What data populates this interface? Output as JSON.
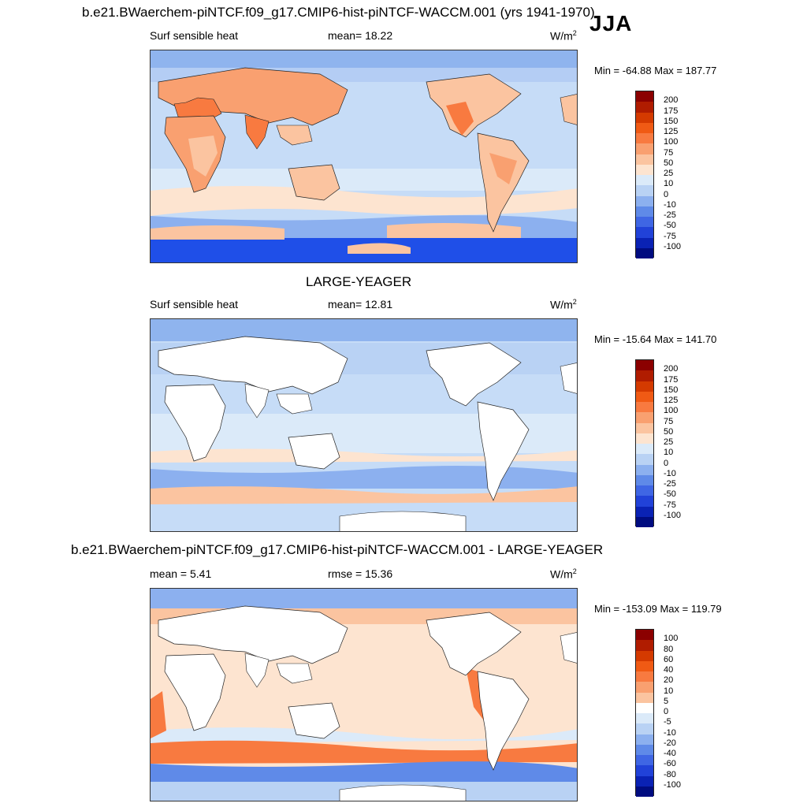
{
  "season": "JJA",
  "panels": [
    {
      "title": "b.e21.BWaerchem-piNTCF.f09_g17.CMIP6-hist-piNTCF-WACCM.001 (yrs 1941-1970)",
      "left_label": "Surf sensible heat",
      "center_label": "mean=  18.22",
      "units_base": "W/m",
      "units_exp": "2",
      "minmax": "Min = -64.88 Max = 187.77",
      "colorbar_labels": [
        "200",
        "175",
        "150",
        "125",
        "100",
        "75",
        "50",
        "25",
        "10",
        "0",
        "-10",
        "-25",
        "-50",
        "-75",
        "-100"
      ],
      "colorbar_colors": [
        "#8b0000",
        "#b01c00",
        "#d43a00",
        "#f05a14",
        "#f87a40",
        "#f9a070",
        "#fbc4a0",
        "#fde4d0",
        "#dbeaf9",
        "#b9d2f4",
        "#8cb0ef",
        "#5f8ae8",
        "#3f66e4",
        "#2142d8",
        "#0a22b4",
        "#000c80"
      ]
    },
    {
      "title": "LARGE-YEAGER",
      "left_label": "Surf sensible heat",
      "center_label": "mean=  12.81",
      "units_base": "W/m",
      "units_exp": "2",
      "minmax": "Min = -15.64 Max = 141.70",
      "colorbar_labels": [
        "200",
        "175",
        "150",
        "125",
        "100",
        "75",
        "50",
        "25",
        "10",
        "0",
        "-10",
        "-25",
        "-50",
        "-75",
        "-100"
      ],
      "colorbar_colors": [
        "#8b0000",
        "#b01c00",
        "#d43a00",
        "#f05a14",
        "#f87a40",
        "#f9a070",
        "#fbc4a0",
        "#fde4d0",
        "#dbeaf9",
        "#b9d2f4",
        "#8cb0ef",
        "#5f8ae8",
        "#3f66e4",
        "#2142d8",
        "#0a22b4",
        "#000c80"
      ]
    },
    {
      "title": "b.e21.BWaerchem-piNTCF.f09_g17.CMIP6-hist-piNTCF-WACCM.001 - LARGE-YEAGER",
      "left_label": "mean =   5.41",
      "center_label": "rmse =  15.36",
      "units_base": "W/m",
      "units_exp": "2",
      "minmax": "Min = -153.09 Max = 119.79",
      "colorbar_labels": [
        "100",
        "80",
        "60",
        "40",
        "20",
        "10",
        "5",
        "0",
        "-5",
        "-10",
        "-20",
        "-40",
        "-60",
        "-80",
        "-100"
      ],
      "colorbar_colors": [
        "#8b0000",
        "#b01c00",
        "#d43a00",
        "#f05a14",
        "#f87a40",
        "#f9a070",
        "#fbc4a0",
        "#ffffff",
        "#dbeaf9",
        "#b9d2f4",
        "#8cb0ef",
        "#5f8ae8",
        "#3f66e4",
        "#2142d8",
        "#0a22b4",
        "#000c80"
      ]
    }
  ]
}
